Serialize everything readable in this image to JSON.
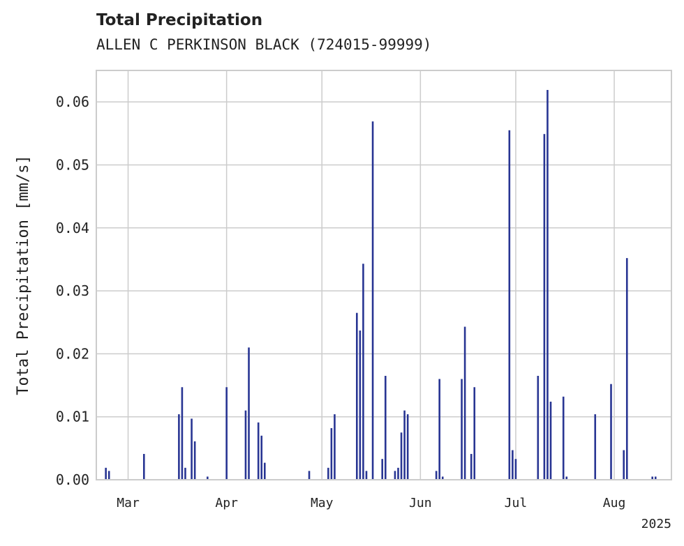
{
  "chart_data": {
    "type": "bar",
    "title": "Total Precipitation",
    "subtitle": "ALLEN C PERKINSON BLACK (724015-99999)",
    "xlabel": "",
    "ylabel": "Total Precipitation [mm/s]",
    "x_axis": "date",
    "xlim": [
      "2025-02-19",
      "2025-08-19"
    ],
    "ylim": [
      0,
      0.065
    ],
    "yticks": [
      0.0,
      0.01,
      0.02,
      0.03,
      0.04,
      0.05,
      0.06
    ],
    "ytick_labels": [
      "0.00",
      "0.01",
      "0.02",
      "0.03",
      "0.04",
      "0.05",
      "0.06"
    ],
    "xticks": [
      "2025-03-01",
      "2025-04-01",
      "2025-05-01",
      "2025-06-01",
      "2025-07-01",
      "2025-08-01"
    ],
    "xtick_labels": [
      "Mar",
      "Apr",
      "May",
      "Jun",
      "Jul",
      "Aug"
    ],
    "x_offset_label": "2025",
    "grid": true,
    "bar_color": "#283593",
    "x": [
      "2025-02-22",
      "2025-02-23",
      "2025-03-06",
      "2025-03-17",
      "2025-03-18",
      "2025-03-19",
      "2025-03-21",
      "2025-03-22",
      "2025-03-26",
      "2025-04-01",
      "2025-04-07",
      "2025-04-08",
      "2025-04-11",
      "2025-04-12",
      "2025-04-13",
      "2025-04-27",
      "2025-05-03",
      "2025-05-04",
      "2025-05-05",
      "2025-05-12",
      "2025-05-13",
      "2025-05-14",
      "2025-05-15",
      "2025-05-17",
      "2025-05-20",
      "2025-05-21",
      "2025-05-24",
      "2025-05-25",
      "2025-05-26",
      "2025-05-27",
      "2025-05-28",
      "2025-06-06",
      "2025-06-07",
      "2025-06-08",
      "2025-06-14",
      "2025-06-15",
      "2025-06-17",
      "2025-06-18",
      "2025-06-29",
      "2025-06-30",
      "2025-07-01",
      "2025-07-08",
      "2025-07-10",
      "2025-07-11",
      "2025-07-12",
      "2025-07-16",
      "2025-07-17",
      "2025-07-26",
      "2025-07-31",
      "2025-08-04",
      "2025-08-05",
      "2025-08-13",
      "2025-08-14"
    ],
    "values": [
      0.0019,
      0.0014,
      0.0041,
      0.0104,
      0.0147,
      0.0019,
      0.0097,
      0.0061,
      0.0005,
      0.0147,
      0.011,
      0.021,
      0.0091,
      0.007,
      0.0027,
      0.0014,
      0.0019,
      0.0082,
      0.0104,
      0.0265,
      0.0237,
      0.0343,
      0.0014,
      0.0569,
      0.0033,
      0.0165,
      0.0014,
      0.0019,
      0.0075,
      0.011,
      0.0104,
      0.0014,
      0.016,
      0.0005,
      0.016,
      0.0243,
      0.0041,
      0.0147,
      0.0555,
      0.0047,
      0.0033,
      0.0165,
      0.0549,
      0.0619,
      0.0124,
      0.0132,
      0.0005,
      0.0104,
      0.0152,
      0.0047,
      0.0352,
      0.0005,
      0.0005
    ]
  }
}
